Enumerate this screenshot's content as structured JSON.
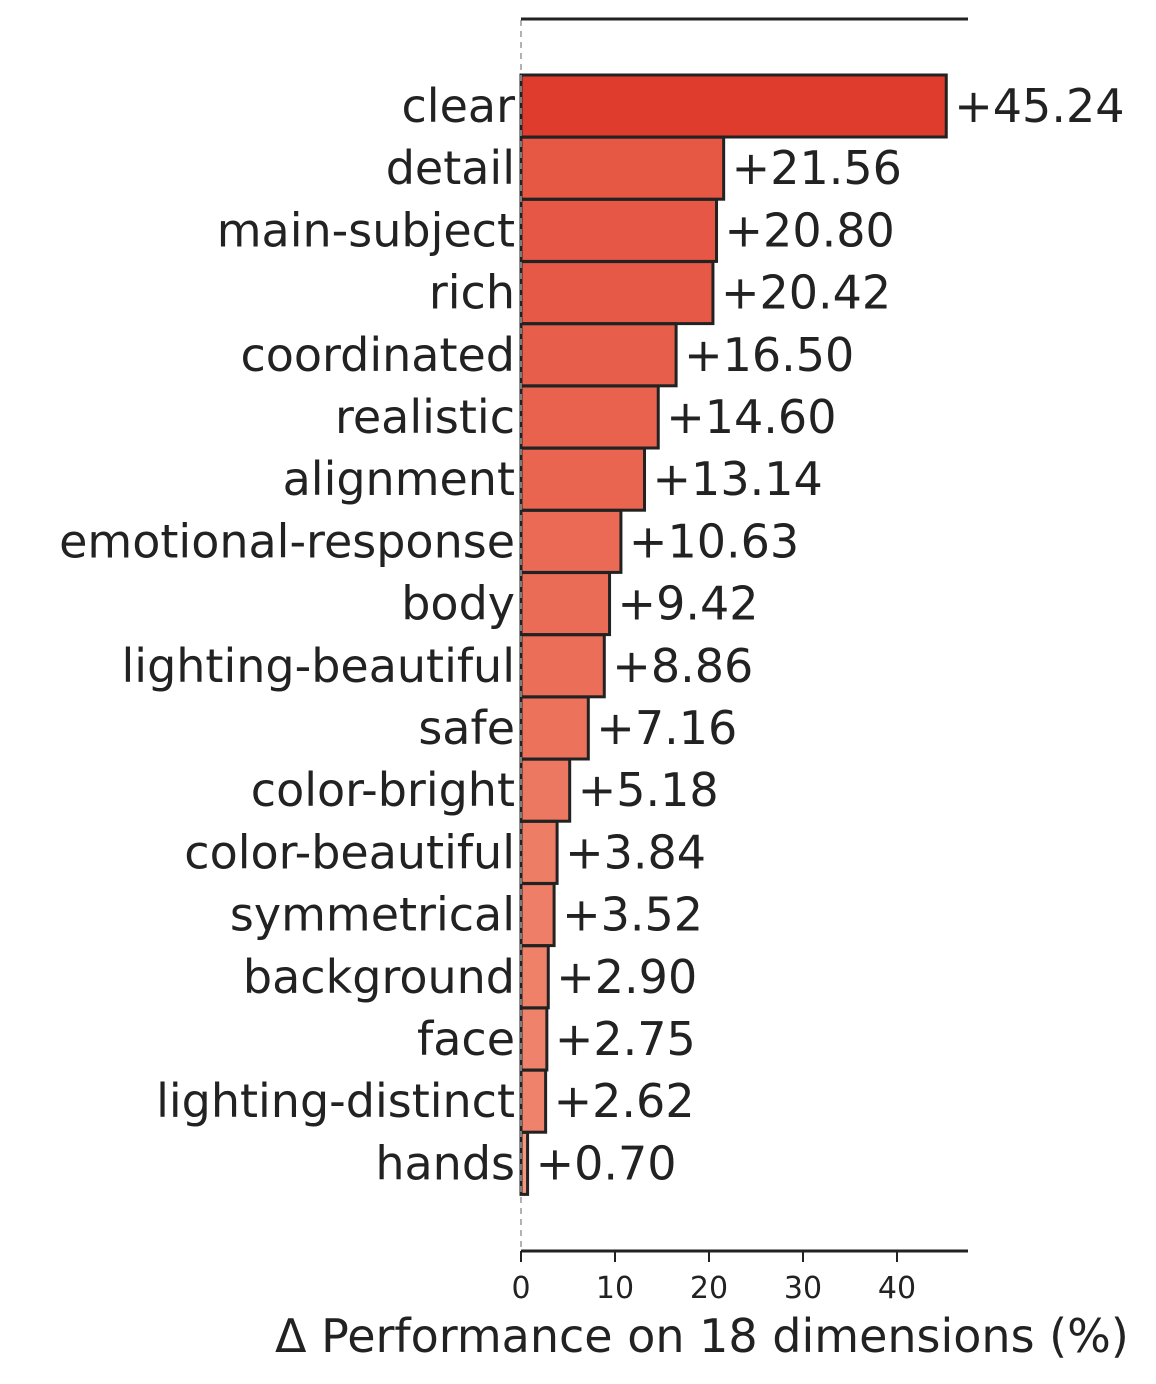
{
  "chart_data": {
    "type": "bar",
    "orientation": "horizontal",
    "categories": [
      "clear",
      "detail",
      "main-subject",
      "rich",
      "coordinated",
      "realistic",
      "alignment",
      "emotional-response",
      "body",
      "lighting-beautiful",
      "safe",
      "color-bright",
      "color-beautiful",
      "symmetrical",
      "background",
      "face",
      "lighting-distinct",
      "hands"
    ],
    "values": [
      45.24,
      21.56,
      20.8,
      20.42,
      16.5,
      14.6,
      13.14,
      10.63,
      9.42,
      8.86,
      7.16,
      5.18,
      3.84,
      3.52,
      2.9,
      2.75,
      2.62,
      0.7
    ],
    "value_labels": [
      "+45.24",
      "+21.56",
      "+20.80",
      "+20.42",
      "+16.50",
      "+14.60",
      "+13.14",
      "+10.63",
      "+9.42",
      "+8.86",
      "+7.16",
      "+5.18",
      "+3.84",
      "+3.52",
      "+2.90",
      "+2.75",
      "+2.62",
      "+0.70"
    ],
    "xticks": [
      0,
      10,
      20,
      30,
      40
    ],
    "xlim": [
      0,
      47.6
    ],
    "xlabel": "Δ Performance on 18 dimensions (%)",
    "title": "",
    "ylabel": "",
    "grid": false,
    "legend": "none",
    "colors": {
      "bar_high": "#e03c2d",
      "bar_low": "#f4997e",
      "edge": "#222222",
      "text": "#222222",
      "zero_line": "#999999"
    }
  }
}
